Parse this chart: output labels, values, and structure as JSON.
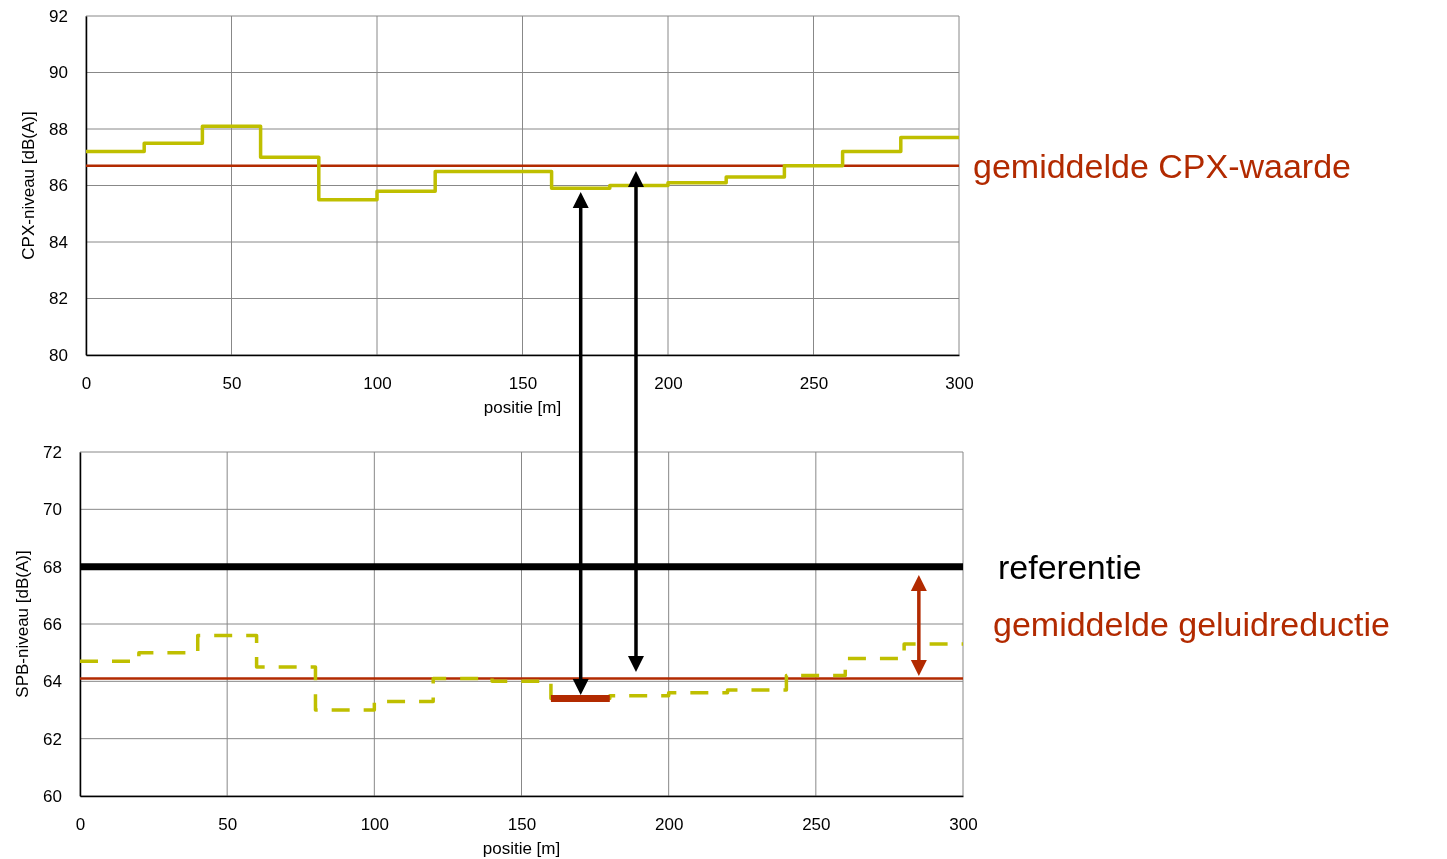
{
  "chart_data": [
    {
      "type": "step",
      "xlabel": "positie [m]",
      "ylabel": "CPX-niveau [dB(A)]",
      "xlim": [
        0,
        300
      ],
      "xticks": [
        0,
        50,
        100,
        150,
        200,
        250,
        300
      ],
      "ylim": [
        80,
        92
      ],
      "yticks": [
        80,
        82,
        84,
        86,
        88,
        90,
        92
      ],
      "grid": true,
      "line_style": "solid",
      "x": [
        0,
        20,
        40,
        60,
        80,
        100,
        120,
        140,
        160,
        180,
        200,
        220,
        240,
        260,
        280,
        300
      ],
      "series": [
        {
          "color": "#bfbf00",
          "values": [
            87.2,
            87.5,
            88.1,
            87.0,
            85.5,
            85.8,
            86.5,
            86.5,
            85.9,
            86.0,
            86.1,
            86.3,
            86.7,
            87.2,
            87.7,
            87.7
          ]
        }
      ],
      "ref_lines": [
        {
          "axis": "y",
          "value": 86.7,
          "label": "gemiddelde CPX-waarde",
          "color": "#b22a00"
        }
      ]
    },
    {
      "type": "step",
      "xlabel": "positie [m]",
      "ylabel": "SPB-niveau [dB(A)]",
      "xlim": [
        0,
        300
      ],
      "xticks": [
        0,
        50,
        100,
        150,
        200,
        250,
        300
      ],
      "ylim": [
        60,
        72
      ],
      "yticks": [
        60,
        62,
        64,
        66,
        68,
        70,
        72
      ],
      "grid": true,
      "x": [
        0,
        20,
        40,
        60,
        80,
        100,
        120,
        140,
        160,
        180,
        200,
        220,
        240,
        260,
        280,
        300
      ],
      "series": [
        {
          "color": "#bfbf00",
          "line_style": "dashed",
          "values": [
            64.7,
            65.0,
            65.6,
            64.5,
            63.0,
            63.3,
            64.1,
            64.0,
            63.4,
            63.5,
            63.6,
            63.7,
            64.2,
            64.8,
            65.3,
            65.3
          ]
        },
        {
          "type": "line",
          "color": "#b22a00",
          "line_style": "solid",
          "x": [
            160,
            180
          ],
          "values": [
            63.4,
            63.4
          ]
        }
      ],
      "ref_lines": [
        {
          "axis": "y",
          "value": 68,
          "label": "referentie",
          "color": "#000000"
        },
        {
          "axis": "y",
          "value": 64.1,
          "color": "#b22a00"
        }
      ],
      "annotations": [
        "gemiddelde geluidreductie"
      ]
    }
  ]
}
